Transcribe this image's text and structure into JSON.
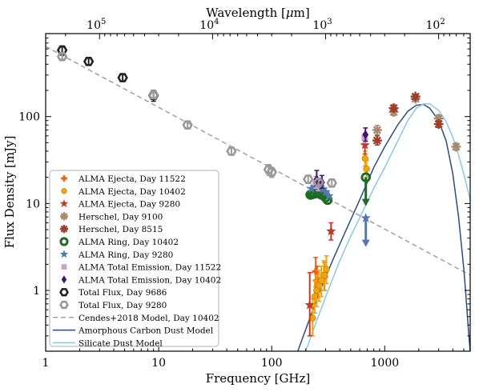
{
  "chart_data": {
    "type": "scatter",
    "xlabel": "Frequency [GHz]",
    "ylabel": "Flux Density [mJy]",
    "top_xlabel_prefix": "Wavelength [",
    "top_xlabel_mu": "μ",
    "top_xlabel_suffix": "m]",
    "xscale": "log",
    "yscale": "log",
    "xlim": [
      1,
      5700
    ],
    "ylim": [
      0.2,
      900
    ],
    "x_ticks": [
      {
        "v": 1,
        "label": "1"
      },
      {
        "v": 10,
        "label": "10"
      },
      {
        "v": 100,
        "label": "100"
      },
      {
        "v": 1000,
        "label": "1000"
      }
    ],
    "y_ticks": [
      {
        "v": 1,
        "label": "1"
      },
      {
        "v": 10,
        "label": "10"
      },
      {
        "v": 100,
        "label": "100"
      }
    ],
    "top_ticks": [
      {
        "mant": "10",
        "exp": "5",
        "freq": 2.998
      },
      {
        "mant": "10",
        "exp": "4",
        "freq": 29.98
      },
      {
        "mant": "10",
        "exp": "3",
        "freq": 299.8
      },
      {
        "mant": "10",
        "exp": "2",
        "freq": 2998
      }
    ],
    "legend_position": "lower-left",
    "colors": {
      "alma_ejecta_11522": "#e8621a",
      "alma_ejecta_10402": "#f0a30a",
      "alma_ejecta_9280": "#c0392b",
      "herschel_9100": "#a58a6b",
      "herschel_8515": "#9e3d2a",
      "ring_10402": "#1e6b24",
      "ring_9280": "#5478ad",
      "total_emission_11522": "#c9a3c9",
      "total_emission_10402": "#4b1368",
      "total_flux_9686": "#222222",
      "total_flux_9280": "#999999",
      "cendes_model": "#a0a0a0",
      "carbon_model": "#2a4d80",
      "silicate_model": "#89c6ea"
    },
    "series": [
      {
        "key": "alma_ejecta_11522",
        "name": "ALMA Ejecta, Day 11522",
        "marker": "plus",
        "points": [
          {
            "x": 245,
            "y": 1.65,
            "lo": 1.1,
            "hi": 2.4
          },
          {
            "x": 252,
            "y": 1.3,
            "lo": 0.9,
            "hi": 1.9
          },
          {
            "x": 293,
            "y": 1.45,
            "lo": 1.0,
            "hi": 2.1
          }
        ]
      },
      {
        "key": "alma_ejecta_10402",
        "name": "ALMA Ejecta, Day 10402",
        "marker": "circle",
        "points": [
          {
            "x": 230,
            "y": 0.48,
            "lo": 0.3,
            "hi": 0.8
          },
          {
            "x": 240,
            "y": 0.85,
            "lo": 0.55,
            "hi": 1.3
          },
          {
            "x": 250,
            "y": 1.0,
            "lo": 0.65,
            "hi": 1.5
          },
          {
            "x": 262,
            "y": 1.15,
            "lo": 0.75,
            "hi": 1.7
          },
          {
            "x": 275,
            "y": 1.3,
            "lo": 0.85,
            "hi": 1.9
          },
          {
            "x": 290,
            "y": 1.5,
            "lo": 1.0,
            "hi": 2.2
          },
          {
            "x": 305,
            "y": 1.75,
            "lo": 1.2,
            "hi": 2.5
          },
          {
            "x": 670,
            "y": 33,
            "lo": 27,
            "hi": 40
          },
          {
            "x": 690,
            "y": 25,
            "lo": 20,
            "hi": 31
          }
        ]
      },
      {
        "key": "alma_ejecta_9280",
        "name": "ALMA Ejecta, Day 9280",
        "marker": "star",
        "points": [
          {
            "x": 217,
            "y": 0.68,
            "lo": 0.3,
            "hi": 1.6
          },
          {
            "x": 335,
            "y": 4.8,
            "lo": 3.8,
            "hi": 6.0
          },
          {
            "x": 668,
            "y": 47,
            "lo": 37,
            "hi": 58
          }
        ]
      },
      {
        "key": "herschel_9100",
        "name": "Herschel, Day 9100",
        "marker": "asterisk",
        "points": [
          {
            "x": 857,
            "y": 70,
            "lo": 62,
            "hi": 79
          },
          {
            "x": 1200,
            "y": 113,
            "lo": 103,
            "hi": 124
          },
          {
            "x": 1870,
            "y": 160,
            "lo": 150,
            "hi": 171
          },
          {
            "x": 3000,
            "y": 95,
            "lo": 87,
            "hi": 104
          },
          {
            "x": 4280,
            "y": 45,
            "lo": 41,
            "hi": 49
          }
        ]
      },
      {
        "key": "herschel_8515",
        "name": "Herschel, Day 8515",
        "marker": "asterisk",
        "points": [
          {
            "x": 857,
            "y": 53,
            "lo": 47,
            "hi": 60
          },
          {
            "x": 1200,
            "y": 125,
            "lo": 115,
            "hi": 136
          },
          {
            "x": 1870,
            "y": 170,
            "lo": 160,
            "hi": 181
          },
          {
            "x": 3000,
            "y": 82,
            "lo": 75,
            "hi": 89
          }
        ]
      },
      {
        "key": "ring_10402",
        "name": "ALMA Ring, Day 10402",
        "marker": "ring",
        "points": [
          {
            "x": 220,
            "y": 12.6
          },
          {
            "x": 230,
            "y": 12.8
          },
          {
            "x": 240,
            "y": 13.0
          },
          {
            "x": 252,
            "y": 13.3
          },
          {
            "x": 264,
            "y": 13.0
          },
          {
            "x": 276,
            "y": 12.6
          },
          {
            "x": 288,
            "y": 12.4
          },
          {
            "x": 300,
            "y": 11.7
          },
          {
            "x": 312,
            "y": 11.0
          },
          {
            "x": 680,
            "y": 20,
            "arrow": true
          }
        ]
      },
      {
        "key": "ring_9280",
        "name": "ALMA Ring, Day 9280",
        "marker": "star",
        "points": [
          {
            "x": 225,
            "y": 14.8
          },
          {
            "x": 240,
            "y": 15.6
          },
          {
            "x": 255,
            "y": 16.2
          },
          {
            "x": 270,
            "y": 15.5
          },
          {
            "x": 285,
            "y": 14.6
          },
          {
            "x": 300,
            "y": 13.6
          },
          {
            "x": 320,
            "y": 12.2
          },
          {
            "x": 680,
            "y": 6.8,
            "arrow": true
          }
        ]
      },
      {
        "key": "total_emission_11522",
        "name": "ALMA Total Emission, Day 11522",
        "marker": "square",
        "points": [
          {
            "x": 245,
            "y": 17.5,
            "lo": 15,
            "hi": 20.5
          },
          {
            "x": 258,
            "y": 16.5,
            "lo": 14,
            "hi": 19.5
          },
          {
            "x": 665,
            "y": 57,
            "lo": 50,
            "hi": 64
          }
        ]
      },
      {
        "key": "total_emission_10402",
        "name": "ALMA Total Emission, Day 10402",
        "marker": "diamond",
        "points": [
          {
            "x": 250,
            "y": 19,
            "lo": 16,
            "hi": 24
          },
          {
            "x": 278,
            "y": 17.5,
            "lo": 15,
            "hi": 21
          },
          {
            "x": 675,
            "y": 62,
            "lo": 52,
            "hi": 74
          }
        ]
      },
      {
        "key": "total_flux_9686",
        "name": "Total Flux, Day 9686",
        "marker": "hexagon",
        "points": [
          {
            "x": 1.4,
            "y": 580,
            "lo": 510,
            "hi": 650
          },
          {
            "x": 2.4,
            "y": 430,
            "lo": 390,
            "hi": 470
          },
          {
            "x": 4.8,
            "y": 280,
            "lo": 255,
            "hi": 305
          },
          {
            "x": 9.0,
            "y": 175,
            "lo": 150,
            "hi": 200
          }
        ]
      },
      {
        "key": "total_flux_9280",
        "name": "Total Flux, Day 9280",
        "marker": "hexagon",
        "points": [
          {
            "x": 1.4,
            "y": 490,
            "lo": 455,
            "hi": 525
          },
          {
            "x": 9.0,
            "y": 178,
            "lo": 165,
            "hi": 190
          },
          {
            "x": 18,
            "y": 80,
            "lo": 74,
            "hi": 86
          },
          {
            "x": 44,
            "y": 40,
            "lo": 36,
            "hi": 44
          },
          {
            "x": 94,
            "y": 24.5,
            "lo": 21,
            "hi": 28
          },
          {
            "x": 100,
            "y": 23,
            "lo": 20,
            "hi": 26
          },
          {
            "x": 210,
            "y": 19,
            "lo": 17,
            "hi": 21
          },
          {
            "x": 260,
            "y": 17.5,
            "lo": 15.5,
            "hi": 19.5
          },
          {
            "x": 340,
            "y": 17.2,
            "lo": 15.5,
            "hi": 19
          }
        ]
      }
    ],
    "models": [
      {
        "key": "cendes_model",
        "name": "Cendes+2018 Model, Day 10402",
        "style": "dashed",
        "points": [
          [
            1,
            640
          ],
          [
            5700,
            1.5
          ]
        ]
      },
      {
        "key": "carbon_model",
        "name": "Amorphous Carbon Dust Model",
        "style": "solid",
        "points": [
          [
            170,
            0.2
          ],
          [
            220,
            0.5
          ],
          [
            280,
            1.15
          ],
          [
            350,
            2.3
          ],
          [
            450,
            4.8
          ],
          [
            600,
            11
          ],
          [
            800,
            26
          ],
          [
            1000,
            45
          ],
          [
            1300,
            80
          ],
          [
            1600,
            115
          ],
          [
            1900,
            135
          ],
          [
            2200,
            138
          ],
          [
            2500,
            125
          ],
          [
            3000,
            90
          ],
          [
            3500,
            52
          ],
          [
            4000,
            22
          ],
          [
            4500,
            7
          ],
          [
            5000,
            1.8
          ],
          [
            5200,
            0.95
          ],
          [
            5500,
            0.35
          ],
          [
            5700,
            0.2
          ]
        ]
      },
      {
        "key": "silicate_model",
        "name": "Silicate Dust Model",
        "style": "solid",
        "points": [
          [
            200,
            0.2
          ],
          [
            250,
            0.45
          ],
          [
            320,
            1.05
          ],
          [
            400,
            2.2
          ],
          [
            500,
            4.2
          ],
          [
            650,
            8.5
          ],
          [
            800,
            15
          ],
          [
            1000,
            26
          ],
          [
            1300,
            52
          ],
          [
            1600,
            90
          ],
          [
            1900,
            125
          ],
          [
            2200,
            140
          ],
          [
            2500,
            140
          ],
          [
            3000,
            118
          ],
          [
            3500,
            87
          ],
          [
            4000,
            58
          ],
          [
            4500,
            36
          ],
          [
            5000,
            22
          ],
          [
            5700,
            11
          ]
        ]
      }
    ]
  }
}
